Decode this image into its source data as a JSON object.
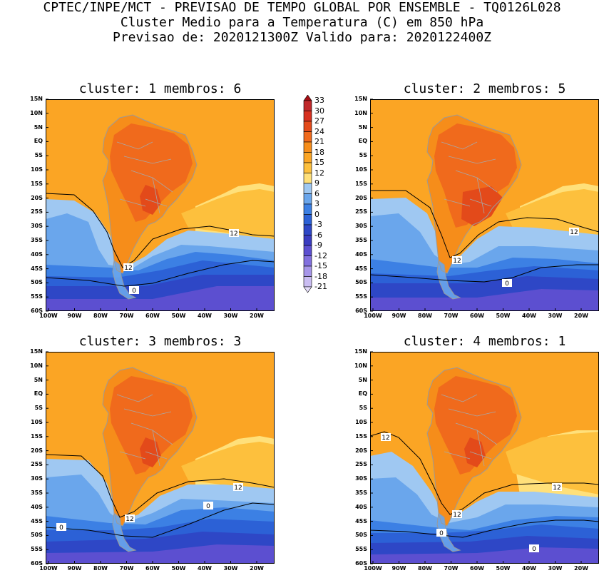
{
  "header": {
    "line1": "CPTEC/INPE/MCT - PREVISAO DE TEMPO GLOBAL POR ENSEMBLE - TQ0126L028",
    "line2": "Cluster Medio para a Temperatura (C) em 850 hPa",
    "line3": "Previsao de: 2020121300Z   Valido para: 2020122400Z"
  },
  "panels": [
    {
      "title": "cluster: 1  membros: 6",
      "contour_labels": [
        "12",
        "12",
        "0"
      ]
    },
    {
      "title": "cluster: 2  membros: 5",
      "contour_labels": [
        "12",
        "12",
        "0"
      ]
    },
    {
      "title": "cluster: 3  membros: 3",
      "contour_labels": [
        "12",
        "12",
        "0",
        "0"
      ]
    },
    {
      "title": "cluster: 4  membros: 1",
      "contour_labels": [
        "12",
        "12",
        "12",
        "0",
        "0"
      ]
    }
  ],
  "lat_labels": [
    "15N",
    "10N",
    "5N",
    "EQ",
    "5S",
    "10S",
    "15S",
    "20S",
    "25S",
    "30S",
    "35S",
    "40S",
    "45S",
    "50S",
    "55S",
    "60S"
  ],
  "lon_labels": [
    "100W",
    "90W",
    "80W",
    "70W",
    "60W",
    "50W",
    "40W",
    "30W",
    "20W"
  ],
  "colorbar": {
    "labels": [
      "33",
      "30",
      "27",
      "24",
      "21",
      "18",
      "15",
      "12",
      "9",
      "6",
      "3",
      "0",
      "-3",
      "-6",
      "-9",
      "-12",
      "-15",
      "-18",
      "-21"
    ],
    "colors": [
      "#a50f15",
      "#c0282a",
      "#d7301f",
      "#e34a1a",
      "#f06a1c",
      "#f68d1a",
      "#fba524",
      "#fdc03d",
      "#ffe07a",
      "#9fc8f2",
      "#6aa6ec",
      "#3c80e4",
      "#2c61d6",
      "#2e47c6",
      "#3a3cc0",
      "#5c4fd0",
      "#8270de",
      "#a796e9",
      "#cabdf2",
      "#e5ddfa"
    ]
  },
  "colors": {
    "very_warm": "#e34a1a",
    "warm": "#f06a1c",
    "warm_mid": "#f68d1a",
    "mild": "#fba524",
    "mild_light": "#fdc03d",
    "cool_yellow": "#ffe07a",
    "light_blue": "#9fc8f2",
    "blue": "#6aa6ec",
    "blue_mid": "#3c80e4",
    "blue_dark": "#2c61d6",
    "indigo": "#2e47c6",
    "indigo2": "#3a3cc0",
    "violet": "#5c4fd0",
    "violet_light": "#8270de"
  }
}
